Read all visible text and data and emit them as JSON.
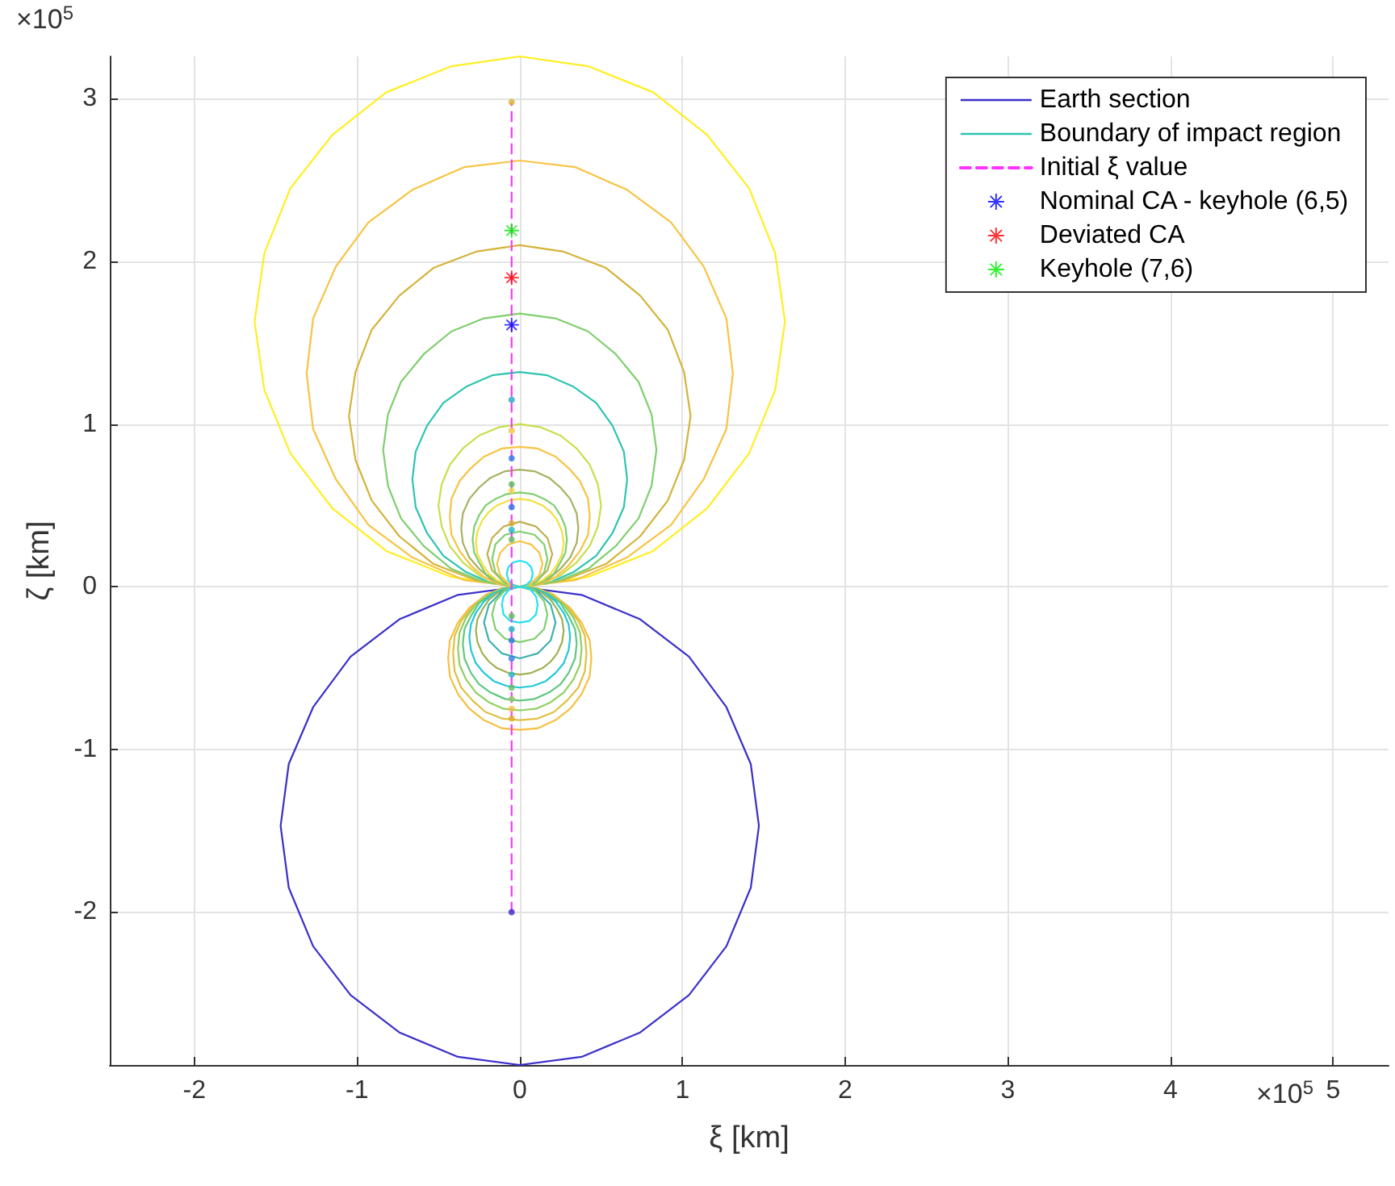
{
  "chart_data": {
    "type": "line",
    "xlabel": "ξ [km]",
    "ylabel": "ζ [km]",
    "annotations": [
      "×10$^{5}$",
      "×10$^{5}$"
    ],
    "xlim": [
      -2.52,
      5.34
    ],
    "xticks": [
      -2,
      -1,
      0,
      1,
      2,
      3,
      4,
      5
    ],
    "ylim": [
      -2.94,
      3.26
    ],
    "yticks": [
      -2,
      -1,
      0,
      1,
      2,
      3
    ],
    "grid": true,
    "legend": "top right",
    "marker": "none",
    "line_style": "solid",
    "series": [
      {
        "name": "Earth section",
        "color": "#3b2fc9",
        "x": [
          -1.47,
          -1.42,
          -1.27,
          -1.04,
          -0.74,
          -0.38,
          0,
          0.38,
          0.74,
          1.04,
          1.27,
          1.42,
          1.47,
          null,
          -1.47,
          -1.42,
          -1.27,
          -1.04,
          -0.74,
          -0.38,
          0,
          0.38,
          0.74,
          1.04,
          1.27,
          1.42,
          1.47
        ],
        "values": [
          -1.47,
          -1.85,
          -2.21,
          -2.51,
          -2.74,
          -2.89,
          -2.94,
          -2.89,
          -2.74,
          -2.51,
          -2.21,
          -1.85,
          -1.47,
          null,
          -1.47,
          -1.09,
          -0.74,
          -0.43,
          -0.2,
          -0.05,
          0,
          -0.05,
          -0.2,
          -0.43,
          -0.74,
          -1.09,
          -1.47
        ]
      },
      {
        "name": "Boundary of impact region",
        "color": "#2ec4b0",
        "x": [
          -0.66,
          -0.64,
          -0.57,
          -0.47,
          -0.33,
          -0.17,
          0,
          0.17,
          0.33,
          0.47,
          0.57,
          0.64,
          0.66,
          null,
          -0.66,
          -0.64,
          -0.57,
          -0.47,
          -0.33,
          -0.17,
          0,
          0.17,
          0.33,
          0.47,
          0.57,
          0.64,
          0.66
        ],
        "values": [
          0.66,
          0.83,
          0.99,
          1.13,
          1.23,
          1.3,
          1.32,
          1.3,
          1.23,
          1.13,
          0.99,
          0.83,
          0.66,
          null,
          0.66,
          0.49,
          0.33,
          0.19,
          0.09,
          0.02,
          0,
          0.02,
          0.09,
          0.19,
          0.33,
          0.49,
          0.66
        ]
      },
      {
        "color": "#ffee22",
        "x": [
          -1.63,
          -1.57,
          -1.41,
          -1.15,
          -0.82,
          -0.42,
          0,
          0.42,
          0.82,
          1.15,
          1.41,
          1.57,
          1.63,
          null,
          -1.63,
          -1.57,
          -1.41,
          -1.15,
          -0.82,
          -0.42,
          0,
          0.42,
          0.82,
          1.15,
          1.41,
          1.57,
          1.63
        ],
        "values": [
          1.63,
          2.05,
          2.45,
          2.78,
          3.04,
          3.2,
          3.26,
          3.2,
          3.04,
          2.78,
          2.45,
          2.05,
          1.63,
          null,
          1.63,
          1.21,
          0.82,
          0.48,
          0.22,
          0.06,
          0,
          0.06,
          0.22,
          0.48,
          0.82,
          1.21,
          1.63
        ]
      },
      {
        "color": "#f7c443",
        "x": [
          -1.31,
          -1.27,
          -1.13,
          -0.93,
          -0.66,
          -0.34,
          0,
          0.34,
          0.66,
          0.93,
          1.13,
          1.27,
          1.31,
          null,
          -1.31,
          -1.27,
          -1.13,
          -0.93,
          -0.66,
          -0.34,
          0,
          0.34,
          0.66,
          0.93,
          1.13,
          1.27,
          1.31
        ],
        "values": [
          1.31,
          1.65,
          1.97,
          2.24,
          2.44,
          2.58,
          2.62,
          2.58,
          2.44,
          2.24,
          1.97,
          1.65,
          1.31,
          null,
          1.31,
          0.97,
          0.66,
          0.38,
          0.18,
          0.04,
          0,
          0.04,
          0.18,
          0.38,
          0.66,
          0.97,
          1.31
        ]
      },
      {
        "color": "#d4b43a",
        "x": [
          -1.05,
          -1.01,
          -0.91,
          -0.74,
          -0.53,
          -0.27,
          0,
          0.27,
          0.53,
          0.74,
          0.91,
          1.01,
          1.05,
          null,
          -1.05,
          -1.01,
          -0.91,
          -0.74,
          -0.53,
          -0.27,
          0,
          0.27,
          0.53,
          0.74,
          0.91,
          1.01,
          1.05
        ],
        "values": [
          1.05,
          1.32,
          1.58,
          1.79,
          1.96,
          2.06,
          2.1,
          2.06,
          1.96,
          1.79,
          1.58,
          1.32,
          1.05,
          null,
          1.05,
          0.78,
          0.53,
          0.31,
          0.14,
          0.04,
          0,
          0.04,
          0.14,
          0.31,
          0.53,
          0.78,
          1.05
        ]
      },
      {
        "color": "#7fcf6e",
        "x": [
          -0.84,
          -0.81,
          -0.73,
          -0.59,
          -0.42,
          -0.22,
          0,
          0.22,
          0.42,
          0.59,
          0.73,
          0.81,
          0.84,
          null,
          -0.84,
          -0.81,
          -0.73,
          -0.59,
          -0.42,
          -0.22,
          0,
          0.22,
          0.42,
          0.59,
          0.73,
          0.81,
          0.84
        ],
        "values": [
          0.84,
          1.06,
          1.26,
          1.43,
          1.57,
          1.65,
          1.68,
          1.65,
          1.57,
          1.43,
          1.26,
          1.06,
          0.84,
          null,
          0.84,
          0.62,
          0.42,
          0.25,
          0.11,
          0.03,
          0,
          0.03,
          0.11,
          0.25,
          0.42,
          0.62,
          0.84
        ]
      },
      {
        "color": "#c6e04a",
        "x": [
          -0.5,
          -0.48,
          -0.43,
          -0.35,
          -0.25,
          -0.13,
          0,
          0.13,
          0.25,
          0.35,
          0.43,
          0.48,
          0.5,
          null,
          -0.5,
          -0.48,
          -0.43,
          -0.35,
          -0.25,
          -0.13,
          0,
          0.13,
          0.25,
          0.35,
          0.43,
          0.48,
          0.5
        ],
        "values": [
          0.5,
          0.63,
          0.75,
          0.85,
          0.93,
          0.98,
          1,
          0.98,
          0.93,
          0.85,
          0.75,
          0.63,
          0.5,
          null,
          0.5,
          0.37,
          0.25,
          0.15,
          0.07,
          0.02,
          0,
          0.02,
          0.07,
          0.15,
          0.25,
          0.37,
          0.5
        ]
      },
      {
        "color": "#f7c443",
        "x": [
          -0.43,
          -0.42,
          -0.37,
          -0.3,
          -0.22,
          -0.11,
          0,
          0.11,
          0.22,
          0.3,
          0.37,
          0.42,
          0.43,
          null,
          -0.43,
          -0.42,
          -0.37,
          -0.3,
          -0.22,
          -0.11,
          0,
          0.11,
          0.22,
          0.3,
          0.37,
          0.42,
          0.43
        ],
        "values": [
          0.43,
          0.54,
          0.65,
          0.73,
          0.8,
          0.85,
          0.86,
          0.85,
          0.8,
          0.73,
          0.65,
          0.54,
          0.43,
          null,
          0.43,
          0.32,
          0.22,
          0.13,
          0.06,
          0.01,
          0,
          0.01,
          0.06,
          0.13,
          0.22,
          0.32,
          0.43
        ]
      },
      {
        "color": "#a8b060",
        "x": [
          -0.36,
          -0.35,
          -0.31,
          -0.25,
          -0.18,
          -0.09,
          0,
          0.09,
          0.18,
          0.25,
          0.31,
          0.35,
          0.36,
          null,
          -0.36,
          -0.35,
          -0.31,
          -0.25,
          -0.18,
          -0.09,
          0,
          0.09,
          0.18,
          0.25,
          0.31,
          0.35,
          0.36
        ],
        "values": [
          0.36,
          0.45,
          0.54,
          0.61,
          0.67,
          0.71,
          0.72,
          0.71,
          0.67,
          0.61,
          0.54,
          0.45,
          0.36,
          null,
          0.36,
          0.27,
          0.18,
          0.11,
          0.05,
          0.01,
          0,
          0.01,
          0.05,
          0.11,
          0.18,
          0.27,
          0.36
        ]
      },
      {
        "color": "#7fcf6e",
        "x": [
          -0.29,
          -0.28,
          -0.25,
          -0.21,
          -0.15,
          -0.08,
          0,
          0.08,
          0.15,
          0.21,
          0.25,
          0.28,
          0.29,
          null,
          -0.29,
          -0.28,
          -0.25,
          -0.21,
          -0.15,
          -0.08,
          0,
          0.08,
          0.15,
          0.21,
          0.25,
          0.28,
          0.29
        ],
        "values": [
          0.29,
          0.37,
          0.44,
          0.5,
          0.54,
          0.57,
          0.58,
          0.57,
          0.54,
          0.5,
          0.44,
          0.37,
          0.29,
          null,
          0.29,
          0.21,
          0.15,
          0.08,
          0.04,
          0.01,
          0,
          0.01,
          0.04,
          0.08,
          0.15,
          0.21,
          0.29
        ]
      },
      {
        "color": "#f0e040",
        "x": [
          -0.27,
          -0.26,
          -0.23,
          -0.19,
          -0.14,
          -0.07,
          0,
          0.07,
          0.14,
          0.19,
          0.23,
          0.26,
          0.27,
          null,
          -0.27,
          -0.26,
          -0.23,
          -0.19,
          -0.14,
          -0.07,
          0,
          0.07,
          0.14,
          0.19,
          0.23,
          0.26,
          0.27
        ],
        "values": [
          0.27,
          0.34,
          0.41,
          0.46,
          0.5,
          0.53,
          0.54,
          0.53,
          0.5,
          0.46,
          0.41,
          0.34,
          0.27,
          null,
          0.27,
          0.2,
          0.14,
          0.08,
          0.04,
          0.01,
          0,
          0.01,
          0.04,
          0.08,
          0.14,
          0.2,
          0.27
        ]
      },
      {
        "color": "#c0b050",
        "x": [
          -0.2,
          -0.17,
          -0.1,
          0,
          0.1,
          0.17,
          0.2,
          null,
          -0.2,
          -0.17,
          -0.1,
          0,
          0.1,
          0.17,
          0.2
        ],
        "values": [
          0.2,
          0.3,
          0.37,
          0.4,
          0.37,
          0.3,
          0.2,
          null,
          0.2,
          0.1,
          0.03,
          0,
          0.03,
          0.1,
          0.2
        ]
      },
      {
        "color": "#7fcf6e",
        "x": [
          -0.17,
          -0.15,
          -0.09,
          0,
          0.09,
          0.15,
          0.17,
          null,
          -0.17,
          -0.15,
          -0.09,
          0,
          0.09,
          0.15,
          0.17
        ],
        "values": [
          0.17,
          0.26,
          0.32,
          0.34,
          0.32,
          0.26,
          0.17,
          null,
          0.17,
          0.09,
          0.02,
          0,
          0.02,
          0.09,
          0.17
        ]
      },
      {
        "color": "#f7c443",
        "x": [
          -0.14,
          -0.12,
          -0.07,
          0,
          0.07,
          0.12,
          0.14,
          null,
          -0.14,
          -0.12,
          -0.07,
          0,
          0.07,
          0.12,
          0.14
        ],
        "values": [
          0.14,
          0.21,
          0.26,
          0.28,
          0.26,
          0.21,
          0.14,
          null,
          0.14,
          0.07,
          0.02,
          0,
          0.02,
          0.07,
          0.14
        ]
      },
      {
        "color": "#22e0f0",
        "x": [
          -0.08,
          -0.07,
          -0.04,
          0,
          0.04,
          0.07,
          0.08,
          null,
          -0.08,
          -0.07,
          -0.04,
          0,
          0.04,
          0.07,
          0.08
        ],
        "values": [
          0.08,
          0.12,
          0.15,
          0.16,
          0.15,
          0.12,
          0.08,
          null,
          0.08,
          0.04,
          0.01,
          0,
          0.01,
          0.04,
          0.08
        ]
      },
      {
        "color": "#f5c040",
        "x": [
          -0.44,
          -0.43,
          -0.38,
          -0.31,
          -0.22,
          -0.11,
          0,
          0.11,
          0.22,
          0.31,
          0.38,
          0.43,
          0.44,
          null,
          -0.44,
          -0.43,
          -0.38,
          -0.31,
          -0.22,
          -0.11,
          0,
          0.11,
          0.22,
          0.31,
          0.38,
          0.43,
          0.44
        ],
        "values": [
          -0.44,
          -0.55,
          -0.66,
          -0.75,
          -0.82,
          -0.87,
          -0.88,
          -0.87,
          -0.82,
          -0.75,
          -0.66,
          -0.55,
          -0.44,
          null,
          -0.44,
          -0.33,
          -0.22,
          -0.13,
          -0.06,
          -0.01,
          0,
          -0.01,
          -0.06,
          -0.13,
          -0.22,
          -0.33,
          -0.44
        ]
      },
      {
        "color": "#e0c040",
        "x": [
          -0.41,
          -0.4,
          -0.36,
          -0.29,
          -0.21,
          -0.11,
          0,
          0.11,
          0.21,
          0.29,
          0.36,
          0.4,
          0.41,
          null,
          -0.41,
          -0.4,
          -0.36,
          -0.29,
          -0.21,
          -0.11,
          0,
          0.11,
          0.21,
          0.29,
          0.36,
          0.4,
          0.41
        ],
        "values": [
          -0.41,
          -0.52,
          -0.62,
          -0.7,
          -0.77,
          -0.81,
          -0.82,
          -0.81,
          -0.77,
          -0.7,
          -0.62,
          -0.52,
          -0.41,
          null,
          -0.41,
          -0.3,
          -0.21,
          -0.12,
          -0.05,
          -0.01,
          0,
          -0.01,
          -0.05,
          -0.12,
          -0.21,
          -0.3,
          -0.41
        ]
      },
      {
        "color": "#90d060",
        "x": [
          -0.38,
          -0.37,
          -0.33,
          -0.27,
          -0.19,
          -0.1,
          0,
          0.1,
          0.19,
          0.27,
          0.33,
          0.37,
          0.38,
          null,
          -0.38,
          -0.37,
          -0.33,
          -0.27,
          -0.19,
          -0.1,
          0,
          0.1,
          0.19,
          0.27,
          0.33,
          0.37,
          0.38
        ],
        "values": [
          -0.38,
          -0.48,
          -0.57,
          -0.65,
          -0.71,
          -0.75,
          -0.76,
          -0.75,
          -0.71,
          -0.65,
          -0.57,
          -0.48,
          -0.38,
          null,
          -0.38,
          -0.28,
          -0.19,
          -0.11,
          -0.05,
          -0.01,
          0,
          -0.01,
          -0.05,
          -0.11,
          -0.19,
          -0.28,
          -0.38
        ]
      },
      {
        "color": "#60c880",
        "x": [
          -0.35,
          -0.34,
          -0.3,
          -0.25,
          -0.18,
          -0.09,
          0,
          0.09,
          0.18,
          0.25,
          0.3,
          0.34,
          0.35,
          null,
          -0.35,
          -0.34,
          -0.3,
          -0.25,
          -0.18,
          -0.09,
          0,
          0.09,
          0.18,
          0.25,
          0.3,
          0.34,
          0.35
        ],
        "values": [
          -0.35,
          -0.44,
          -0.53,
          -0.6,
          -0.65,
          -0.69,
          -0.7,
          -0.69,
          -0.65,
          -0.6,
          -0.53,
          -0.44,
          -0.35,
          null,
          -0.35,
          -0.26,
          -0.18,
          -0.1,
          -0.05,
          -0.01,
          0,
          -0.01,
          -0.05,
          -0.1,
          -0.18,
          -0.26,
          -0.35
        ]
      },
      {
        "color": "#20c8d8",
        "x": [
          -0.31,
          -0.3,
          -0.27,
          -0.22,
          -0.16,
          -0.08,
          0,
          0.08,
          0.16,
          0.22,
          0.27,
          0.3,
          0.31,
          null,
          -0.31,
          -0.3,
          -0.27,
          -0.22,
          -0.16,
          -0.08,
          0,
          0.08,
          0.16,
          0.22,
          0.27,
          0.3,
          0.31
        ],
        "values": [
          -0.31,
          -0.39,
          -0.47,
          -0.53,
          -0.58,
          -0.61,
          -0.62,
          -0.61,
          -0.58,
          -0.53,
          -0.47,
          -0.39,
          -0.31,
          null,
          -0.31,
          -0.23,
          -0.16,
          -0.09,
          -0.04,
          -0.01,
          0,
          -0.01,
          -0.04,
          -0.09,
          -0.16,
          -0.23,
          -0.31
        ]
      },
      {
        "color": "#a0b050",
        "x": [
          -0.27,
          -0.26,
          -0.23,
          -0.19,
          -0.14,
          -0.07,
          0,
          0.07,
          0.14,
          0.19,
          0.23,
          0.26,
          0.27,
          null,
          -0.27,
          -0.26,
          -0.23,
          -0.19,
          -0.14,
          -0.07,
          0,
          0.07,
          0.14,
          0.19,
          0.23,
          0.26,
          0.27
        ],
        "values": [
          -0.27,
          -0.34,
          -0.41,
          -0.46,
          -0.5,
          -0.53,
          -0.54,
          -0.53,
          -0.5,
          -0.46,
          -0.41,
          -0.34,
          -0.27,
          null,
          -0.27,
          -0.2,
          -0.14,
          -0.08,
          -0.04,
          -0.01,
          0,
          -0.01,
          -0.04,
          -0.08,
          -0.14,
          -0.2,
          -0.27
        ]
      },
      {
        "color": "#40b0b0",
        "x": [
          -0.22,
          -0.19,
          -0.11,
          0,
          0.11,
          0.19,
          0.22,
          null,
          -0.22,
          -0.19,
          -0.11,
          0,
          0.11,
          0.19,
          0.22
        ],
        "values": [
          -0.22,
          -0.33,
          -0.41,
          -0.44,
          -0.41,
          -0.33,
          -0.22,
          null,
          -0.22,
          -0.11,
          -0.03,
          0,
          -0.03,
          -0.11,
          -0.22
        ]
      },
      {
        "color": "#7fcf6e",
        "x": [
          -0.17,
          -0.15,
          -0.09,
          0,
          0.09,
          0.15,
          0.17,
          null,
          -0.17,
          -0.15,
          -0.09,
          0,
          0.09,
          0.15,
          0.17
        ],
        "values": [
          -0.17,
          -0.26,
          -0.32,
          -0.34,
          -0.32,
          -0.26,
          -0.17,
          null,
          -0.17,
          -0.09,
          -0.02,
          0,
          -0.02,
          -0.09,
          -0.17
        ]
      },
      {
        "color": "#22e0f0",
        "x": [
          -0.11,
          -0.1,
          -0.06,
          0,
          0.06,
          0.1,
          0.11,
          null,
          -0.11,
          -0.1,
          -0.06,
          0,
          0.06,
          0.1,
          0.11
        ],
        "values": [
          -0.11,
          -0.17,
          -0.21,
          -0.22,
          -0.21,
          -0.17,
          -0.11,
          null,
          -0.11,
          -0.06,
          -0.01,
          0,
          -0.01,
          -0.06,
          -0.11
        ]
      },
      {
        "name": "Initial ξ value",
        "color": "#ff33ff",
        "line_style": "dashed",
        "x": [
          -0.05,
          -0.05
        ],
        "values": [
          -2,
          2.97
        ]
      },
      {
        "type": "scatter",
        "marker": "circle",
        "x": [
          -0.05,
          -0.05,
          -0.05,
          -0.05,
          -0.05,
          -0.05,
          -0.05,
          -0.05,
          -0.05,
          -0.05,
          -0.05,
          -0.05,
          -0.05,
          -0.05,
          -0.05,
          -0.05,
          -0.05,
          -0.05,
          -0.05,
          -0.05
        ],
        "values": [
          2.98,
          1.15,
          0.96,
          0.79,
          0.63,
          0.59,
          0.49,
          0.39,
          0.35,
          0.29,
          -0.18,
          -0.26,
          -0.33,
          -0.44,
          -0.54,
          -0.62,
          -0.69,
          -0.75,
          -0.81,
          -2
        ],
        "colors": [
          "#d8b030",
          "#20a8c8",
          "#f5c040",
          "#3080e0",
          "#60c060",
          "#f0e040",
          "#3070e0",
          "#d8b030",
          "#20b8c8",
          "#60c060",
          "#60c060",
          "#20b8c8",
          "#3070e0",
          "#3080e0",
          "#20b8c8",
          "#60c060",
          "#90d060",
          "#f5c040",
          "#e0b030",
          "#3b2fc9"
        ]
      },
      {
        "name": "Nominal CA - keyhole (6,5)",
        "type": "scatter",
        "marker": "star",
        "color": "#0000ff",
        "x": [
          -0.05
        ],
        "values": [
          1.61
        ]
      },
      {
        "name": "Deviated CA",
        "type": "scatter",
        "marker": "star",
        "color": "#ff0000",
        "x": [
          -0.05
        ],
        "values": [
          1.9
        ]
      },
      {
        "name": "Keyhole (7,6)",
        "type": "scatter",
        "marker": "star",
        "color": "#00ee00",
        "x": [
          -0.05
        ],
        "values": [
          2.19
        ]
      }
    ]
  }
}
